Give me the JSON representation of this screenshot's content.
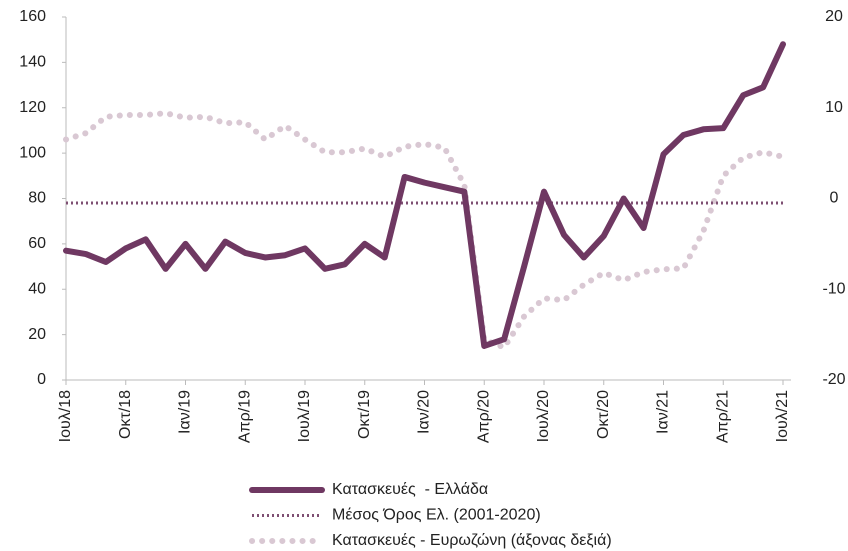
{
  "chart_data": {
    "type": "line",
    "categories": [
      "Ιουλ/18",
      null,
      null,
      "Οκτ/18",
      null,
      null,
      "Ιαν/19",
      null,
      null,
      "Απρ/19",
      null,
      null,
      "Ιουλ/19",
      null,
      null,
      "Οκτ/19",
      null,
      null,
      "Ιαν/20",
      null,
      null,
      "Απρ/20",
      null,
      null,
      "Ιουλ/20",
      null,
      null,
      "Οκτ/20",
      null,
      null,
      "Ιαν/21",
      null,
      null,
      "Απρ/21",
      null,
      null,
      "Ιουλ/21"
    ],
    "series": [
      {
        "name": "Κατασκευές  - Ελλάδα",
        "color": "#6f3862",
        "line_style": "solid",
        "values": [
          57,
          55.5,
          52,
          58,
          62,
          49,
          60,
          49,
          61,
          56,
          54,
          55,
          58,
          49,
          51,
          60,
          54,
          89.5,
          87,
          85,
          83,
          15,
          18,
          50,
          83,
          64,
          54,
          63.5,
          80,
          67,
          99.5,
          108,
          110.5,
          111,
          125.5,
          129,
          148
        ]
      },
      {
        "name": "Μέσος Όρος Ελ. (2001-2020)",
        "color": "#7e4f72",
        "line_style": "dotted",
        "values": [
          78,
          78,
          78,
          78,
          78,
          78,
          78,
          78,
          78,
          78,
          78,
          78,
          78,
          78,
          78,
          78,
          78,
          78,
          78,
          78,
          78,
          78,
          78,
          78,
          78,
          78,
          78,
          78,
          78,
          78,
          78,
          78,
          78,
          78,
          78,
          78,
          78
        ]
      },
      {
        "name": "Κατασκευές - Ευρωζώνη (άξονας δεξιά)",
        "color": "#d9c8d3",
        "line_style": "big-dots",
        "axis": "y2",
        "values": [
          6.5,
          7.2,
          9,
          9.2,
          9.2,
          9.4,
          8.9,
          9,
          8.3,
          8.4,
          6.5,
          8,
          6.5,
          5.1,
          5.1,
          5.5,
          4.6,
          5.7,
          6,
          5.6,
          1.5,
          -15.6,
          -16.4,
          -13,
          -11,
          -11.2,
          -9.5,
          -8.2,
          -9,
          -8.1,
          -7.8,
          -7.7,
          -3.6,
          2.5,
          4.5,
          5.1,
          4.6
        ]
      }
    ],
    "ylim": [
      0,
      160
    ],
    "yticks": [
      0,
      20,
      40,
      60,
      80,
      100,
      120,
      140,
      160
    ],
    "y2lim": [
      -20,
      20
    ],
    "y2ticks": [
      -20,
      -10,
      0,
      10,
      20
    ],
    "grid": false
  }
}
